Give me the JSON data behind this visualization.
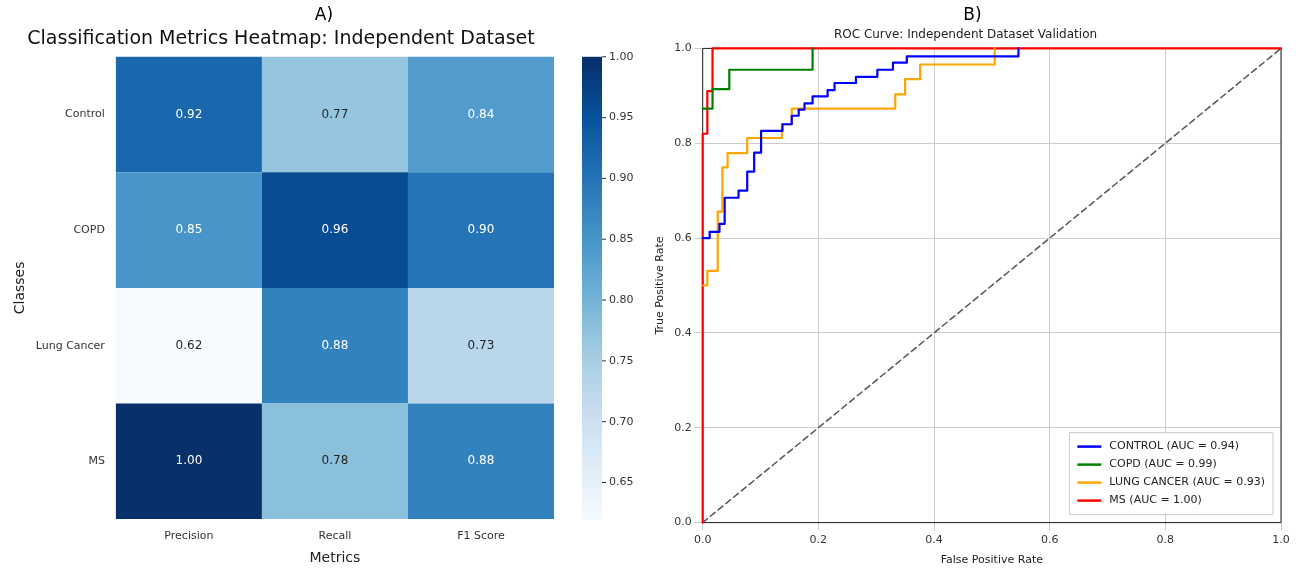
{
  "chart_data": [
    {
      "type": "heatmap",
      "title": "Classification Metrics Heatmap: Independent Dataset",
      "xlabel": "Metrics",
      "ylabel": "Classes",
      "annotations": [
        "A)"
      ],
      "categories": [
        "Precision",
        "Recall",
        "F1 Score"
      ],
      "y_categories": [
        "Control",
        "COPD",
        "Lung Cancer",
        "MS"
      ],
      "cells": [
        [
          0.92,
          0.77,
          0.84
        ],
        [
          0.85,
          0.96,
          0.9
        ],
        [
          0.62,
          0.88,
          0.73
        ],
        [
          1.0,
          0.78,
          0.88
        ]
      ],
      "cell_labels": [
        [
          "0.92",
          "0.77",
          "0.84"
        ],
        [
          "0.85",
          "0.96",
          "0.90"
        ],
        [
          "0.62",
          "0.88",
          "0.73"
        ],
        [
          "1.00",
          "0.78",
          "0.88"
        ]
      ],
      "clim": [
        0.62,
        1.0
      ],
      "cticks": [
        {
          "value": 0.65,
          "label": "0.65"
        },
        {
          "value": 0.7,
          "label": "0.70"
        },
        {
          "value": 0.75,
          "label": "0.75"
        },
        {
          "value": 0.8,
          "label": "0.80"
        },
        {
          "value": 0.85,
          "label": "0.85"
        },
        {
          "value": 0.9,
          "label": "0.90"
        },
        {
          "value": 0.95,
          "label": "0.95"
        },
        {
          "value": 1.0,
          "label": "1.00"
        }
      ]
    },
    {
      "type": "line",
      "title": "ROC Curve: Independent Dataset Validation",
      "xlabel": "False Positive Rate",
      "ylabel": "True Positive Rate",
      "annotations": [
        "B)"
      ],
      "xlim": [
        0,
        1
      ],
      "ylim": [
        0,
        1
      ],
      "xticks": [
        {
          "value": 0,
          "label": "0.0"
        },
        {
          "value": 0.2,
          "label": "0.2"
        },
        {
          "value": 0.4,
          "label": "0.4"
        },
        {
          "value": 0.6,
          "label": "0.6"
        },
        {
          "value": 0.8,
          "label": "0.8"
        },
        {
          "value": 1,
          "label": "1.0"
        }
      ],
      "yticks": [
        {
          "value": 0,
          "label": "0.0"
        },
        {
          "value": 0.2,
          "label": "0.2"
        },
        {
          "value": 0.4,
          "label": "0.4"
        },
        {
          "value": 0.6,
          "label": "0.6"
        },
        {
          "value": 0.8,
          "label": "0.8"
        },
        {
          "value": 1,
          "label": "1.0"
        }
      ],
      "grid": true,
      "legend": "bottom right",
      "series": [
        {
          "name": "CONTROL (AUC = 0.94)",
          "color": "#0000ff",
          "x": [
            0,
            0.012,
            0.012,
            0.029,
            0.029,
            0.038,
            0.038,
            0.062,
            0.062,
            0.077,
            0.077,
            0.089,
            0.089,
            0.101,
            0.101,
            0.138,
            0.138,
            0.154,
            0.154,
            0.166,
            0.166,
            0.176,
            0.176,
            0.19,
            0.19,
            0.216,
            0.216,
            0.228,
            0.228,
            0.265,
            0.265,
            0.302,
            0.302,
            0.329,
            0.329,
            0.353,
            0.353,
            0.546,
            0.546
          ],
          "values": [
            0.6,
            0.6,
            0.613,
            0.613,
            0.63,
            0.63,
            0.685,
            0.685,
            0.7,
            0.7,
            0.74,
            0.74,
            0.78,
            0.78,
            0.826,
            0.826,
            0.84,
            0.84,
            0.858,
            0.858,
            0.871,
            0.871,
            0.884,
            0.884,
            0.899,
            0.899,
            0.912,
            0.912,
            0.927,
            0.927,
            0.94,
            0.94,
            0.955,
            0.955,
            0.97,
            0.97,
            0.983,
            0.983,
            1
          ]
        },
        {
          "name": "COPD (AUC = 0.99)",
          "color": "#008000",
          "x": [
            0,
            0.017,
            0.017,
            0.046,
            0.046,
            0.19,
            0.19
          ],
          "values": [
            0.873,
            0.873,
            0.914,
            0.914,
            0.955,
            0.955,
            1
          ]
        },
        {
          "name": "LUNG CANCER (AUC = 0.93)",
          "color": "#ffa500",
          "x": [
            0,
            0.008,
            0.008,
            0.026,
            0.026,
            0.034,
            0.034,
            0.043,
            0.043,
            0.077,
            0.077,
            0.137,
            0.137,
            0.154,
            0.154,
            0.333,
            0.333,
            0.35,
            0.35,
            0.376,
            0.376,
            0.505,
            0.505
          ],
          "values": [
            0.5,
            0.5,
            0.531,
            0.531,
            0.656,
            0.656,
            0.749,
            0.749,
            0.779,
            0.779,
            0.811,
            0.811,
            0.84,
            0.84,
            0.873,
            0.873,
            0.903,
            0.903,
            0.935,
            0.935,
            0.966,
            0.966,
            1
          ]
        },
        {
          "name": "MS (AUC = 1.00)",
          "color": "#ff0000",
          "x": [
            0,
            0,
            0.008,
            0.008,
            0.017,
            0.017,
            1
          ],
          "values": [
            0,
            0.82,
            0.82,
            0.91,
            0.91,
            1,
            1
          ]
        },
        {
          "color": "#555555",
          "line_style": "dashed",
          "x": [
            0,
            1
          ],
          "values": [
            0,
            1
          ]
        }
      ]
    }
  ]
}
